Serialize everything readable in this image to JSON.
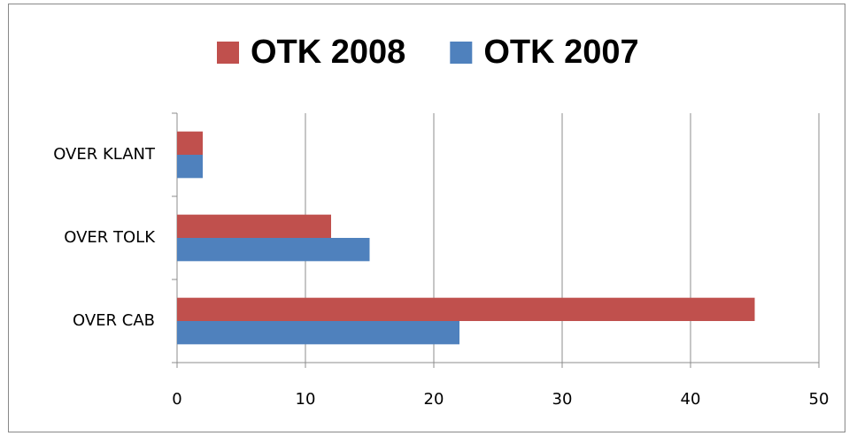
{
  "chart_data": {
    "type": "hbar",
    "categories": [
      "OVER CAB",
      "OVER TOLK",
      "OVER KLANT"
    ],
    "series": [
      {
        "name": "OTK 2008",
        "color": "#c0504d",
        "values": [
          45,
          12,
          2
        ]
      },
      {
        "name": "OTK 2007",
        "color": "#4f81bd",
        "values": [
          22,
          15,
          2
        ]
      }
    ],
    "xlim": [
      0,
      50
    ],
    "xticks": [
      0,
      10,
      20,
      30,
      40,
      50
    ],
    "grid": true,
    "legend": "top"
  }
}
